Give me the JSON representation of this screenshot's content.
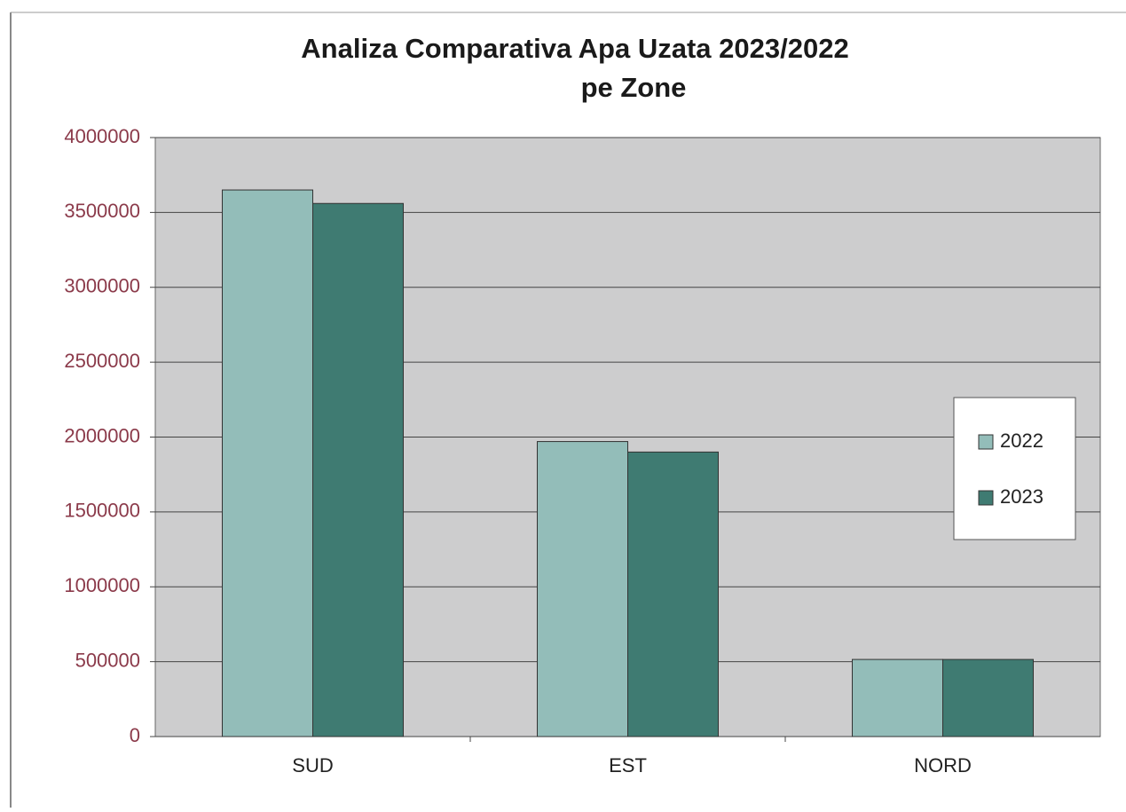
{
  "chart_data": {
    "type": "bar",
    "title": [
      "Analiza Comparativa Apa Uzata 2023/2022",
      "pe Zone"
    ],
    "categories": [
      "SUD",
      "EST",
      "NORD"
    ],
    "series": [
      {
        "name": "2022",
        "color": "#93bdb9",
        "values": [
          3650000,
          1970000,
          515000
        ]
      },
      {
        "name": "2023",
        "color": "#3f7b72",
        "values": [
          3560000,
          1900000,
          515000
        ]
      }
    ],
    "ylim": [
      0,
      4000000
    ],
    "yticks": [
      0,
      500000,
      1000000,
      1500000,
      2000000,
      2500000,
      3000000,
      3500000,
      4000000
    ],
    "grid": true,
    "legend": "right"
  }
}
